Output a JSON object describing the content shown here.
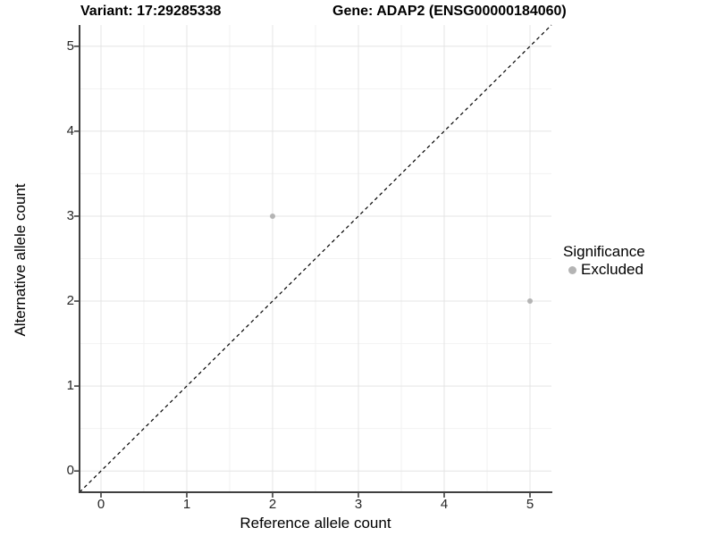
{
  "figure": {
    "title_left": "Variant: 17:29285338",
    "title_right": "Gene: ADAP2 (ENSG00000184060)"
  },
  "chart_data": {
    "type": "scatter",
    "title_left": "Variant: 17:29285338",
    "title_right": "Gene: ADAP2 (ENSG00000184060)",
    "xlabel": "Reference allele count",
    "ylabel": "Alternative allele count",
    "xlim": [
      -0.25,
      5.25
    ],
    "ylim": [
      -0.25,
      5.25
    ],
    "x_ticks": [
      0,
      1,
      2,
      3,
      4,
      5
    ],
    "y_ticks": [
      0,
      1,
      2,
      3,
      4,
      5
    ],
    "x_minor": [
      0.5,
      1.5,
      2.5,
      3.5,
      4.5
    ],
    "y_minor": [
      0.5,
      1.5,
      2.5,
      3.5,
      4.5
    ],
    "grid": "major+minor",
    "reference_line": {
      "type": "diagonal",
      "equation": "y = x",
      "style": "dashed",
      "color": "#000000"
    },
    "series": [
      {
        "name": "Excluded",
        "color": "#b4b4b4",
        "points": [
          {
            "x": 2,
            "y": 3
          },
          {
            "x": 5,
            "y": 2
          }
        ]
      }
    ],
    "legend": {
      "title": "Significance",
      "position": "right",
      "items": [
        {
          "label": "Excluded",
          "color": "#b4b4b4"
        }
      ]
    }
  },
  "colors": {
    "background": "#ffffff",
    "grid_major": "#e4e4e4",
    "grid_minor": "#f2f2f2",
    "axis_line": "#404040",
    "tick_mark": "#333333",
    "tick_label": "#262626",
    "point": "#b4b4b4",
    "diagonal": "#000000"
  }
}
